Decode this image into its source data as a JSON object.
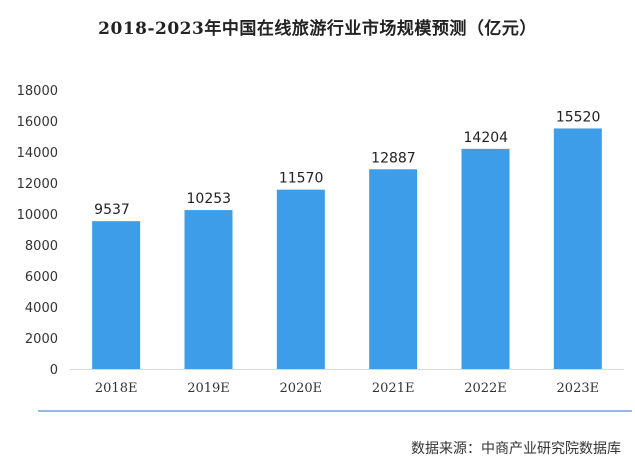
{
  "chart_data": {
    "type": "bar",
    "title": "2018-2023年中国在线旅游行业市场规模预测（亿元）",
    "categories": [
      "2018E",
      "2019E",
      "2020E",
      "2021E",
      "2022E",
      "2023E"
    ],
    "values": [
      9537,
      10253,
      11570,
      12887,
      14204,
      15520
    ],
    "ylim": [
      0,
      18000
    ],
    "yticks": [
      0,
      2000,
      4000,
      6000,
      8000,
      10000,
      12000,
      14000,
      16000,
      18000
    ],
    "xlabel": "",
    "ylabel": "",
    "grid": false,
    "legend": "none",
    "bar_color": "#3d9de8",
    "baseline_color": "#d9d9d9",
    "footer_rule_color": "#5b8fd6"
  },
  "source": "数据来源：中商产业研究院数据库"
}
